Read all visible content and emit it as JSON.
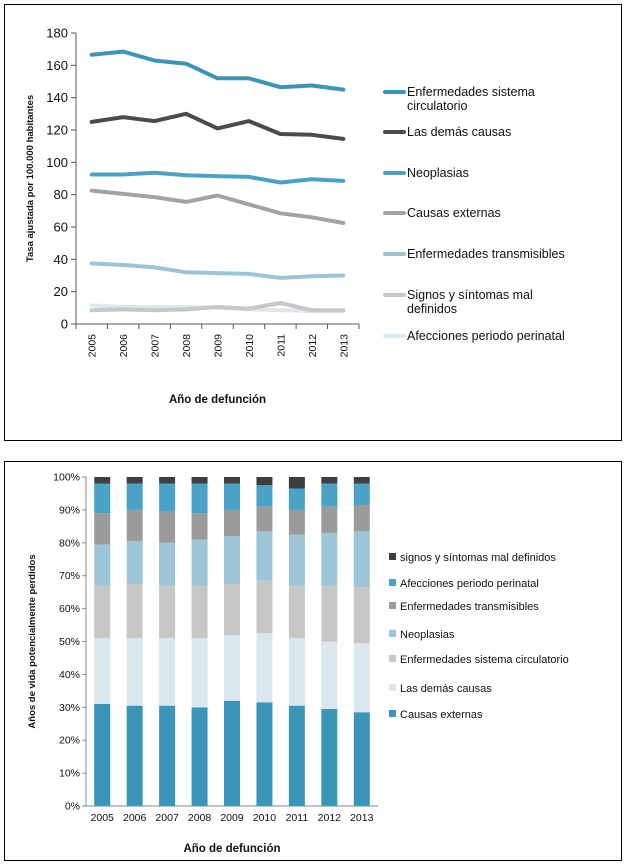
{
  "chart_data": [
    {
      "type": "line",
      "title": "",
      "xlabel": "Año de defunción",
      "ylabel": "Tasa ajustada por 100.000 habitantes",
      "ylim": [
        0,
        180
      ],
      "yticks": [
        "0",
        "20",
        "40",
        "60",
        "80",
        "100",
        "120",
        "140",
        "160",
        "180"
      ],
      "x": [
        "2005",
        "2006",
        "2007",
        "2008",
        "2009",
        "2010",
        "2011",
        "2012",
        "2013"
      ],
      "grid": false,
      "legend_position": "right",
      "series": [
        {
          "name": "Enfermedades sistema circulatorio",
          "legend_lines": [
            "Enfermedades sistema",
            "circulatorio"
          ],
          "color": "#3a95b8",
          "values": [
            166.5,
            168.5,
            163.0,
            161.0,
            152.0,
            152.0,
            146.5,
            147.5,
            145.0
          ]
        },
        {
          "name": "Las demás causas",
          "legend_lines": [
            "Las demás causas"
          ],
          "color": "#4b4b4b",
          "values": [
            125.0,
            128.0,
            125.5,
            130.0,
            121.0,
            125.5,
            117.5,
            117.0,
            114.5
          ]
        },
        {
          "name": "Neoplasias",
          "legend_lines": [
            "Neoplasias"
          ],
          "color": "#4aa3c6",
          "values": [
            92.5,
            92.5,
            93.5,
            92.0,
            91.5,
            91.0,
            87.5,
            89.5,
            88.5
          ]
        },
        {
          "name": "Causas externas",
          "legend_lines": [
            "Causas externas"
          ],
          "color": "#a3a3a3",
          "values": [
            82.5,
            80.5,
            78.5,
            75.5,
            79.5,
            74.0,
            68.5,
            66.0,
            62.5
          ]
        },
        {
          "name": "Enfermedades transmisibles",
          "legend_lines": [
            "Enfermedades transmisibles"
          ],
          "color": "#9cc4d7",
          "values": [
            37.5,
            36.5,
            35.0,
            32.0,
            31.5,
            31.0,
            28.5,
            29.5,
            30.0
          ]
        },
        {
          "name": "Signos y síntomas mal definidos",
          "legend_lines": [
            "Signos y síntomas mal",
            "definidos"
          ],
          "color": "#c7c7c7",
          "values": [
            8.5,
            9.0,
            8.5,
            9.0,
            10.5,
            9.5,
            13.0,
            8.5,
            8.5
          ]
        },
        {
          "name": "Afecciones periodo perinatal",
          "legend_lines": [
            "Afecciones periodo perinatal"
          ],
          "color": "#dbe9f1",
          "values": [
            11.5,
            10.5,
            10.5,
            10.5,
            10.0,
            9.0,
            8.5,
            8.0,
            8.0
          ]
        }
      ]
    },
    {
      "type": "bar",
      "stacked": "percent",
      "title": "",
      "xlabel": "Año de defunción",
      "ylabel": "Años de vida potencialmente perdidos",
      "ylim": [
        0,
        100
      ],
      "yticks": [
        "0%",
        "10%",
        "20%",
        "30%",
        "40%",
        "50%",
        "60%",
        "70%",
        "80%",
        "90%",
        "100%"
      ],
      "categories": [
        "2005",
        "2006",
        "2007",
        "2008",
        "2009",
        "2010",
        "2011",
        "2012",
        "2013"
      ],
      "grid": false,
      "legend_position": "right",
      "legend_order": [
        "signos y síntomas mal definidos",
        "Afecciones periodo perinatal",
        "Enfermedades transmisibles",
        "Neoplasias",
        "Enfermedades sistema circulatorio",
        "Las demás causas",
        "Causas externas"
      ],
      "series": [
        {
          "name": "Causas externas",
          "color": "#3a95b8",
          "values": [
            31,
            30.5,
            30.5,
            30,
            32,
            31.5,
            30.5,
            29.5,
            28.5
          ]
        },
        {
          "name": "Las demás causas",
          "color": "#dae7ef",
          "values": [
            20,
            20.5,
            20.5,
            21,
            20,
            21,
            20.5,
            20.5,
            21
          ]
        },
        {
          "name": "Enfermedades sistema circulatorio",
          "color": "#c6c6c6",
          "values": [
            16,
            16.5,
            16,
            16,
            15.5,
            16,
            16,
            17,
            17
          ]
        },
        {
          "name": "Neoplasias",
          "color": "#9dc5d8",
          "values": [
            12.5,
            13,
            13,
            14,
            14.5,
            15,
            15.5,
            16,
            17
          ]
        },
        {
          "name": "Enfermedades transmisibles",
          "color": "#9b9b9b",
          "values": [
            9.5,
            9.5,
            9.5,
            8,
            8,
            7.5,
            7.5,
            8,
            8
          ]
        },
        {
          "name": "Afecciones periodo perinatal",
          "color": "#4aa3c6",
          "values": [
            9,
            8,
            8.5,
            9,
            8,
            6.5,
            6.5,
            7,
            6.5
          ]
        },
        {
          "name": "signos y síntomas mal definidos",
          "color": "#3e3e3e",
          "values": [
            2,
            2,
            2,
            2,
            2,
            2.5,
            3.5,
            2,
            2
          ]
        }
      ]
    }
  ]
}
